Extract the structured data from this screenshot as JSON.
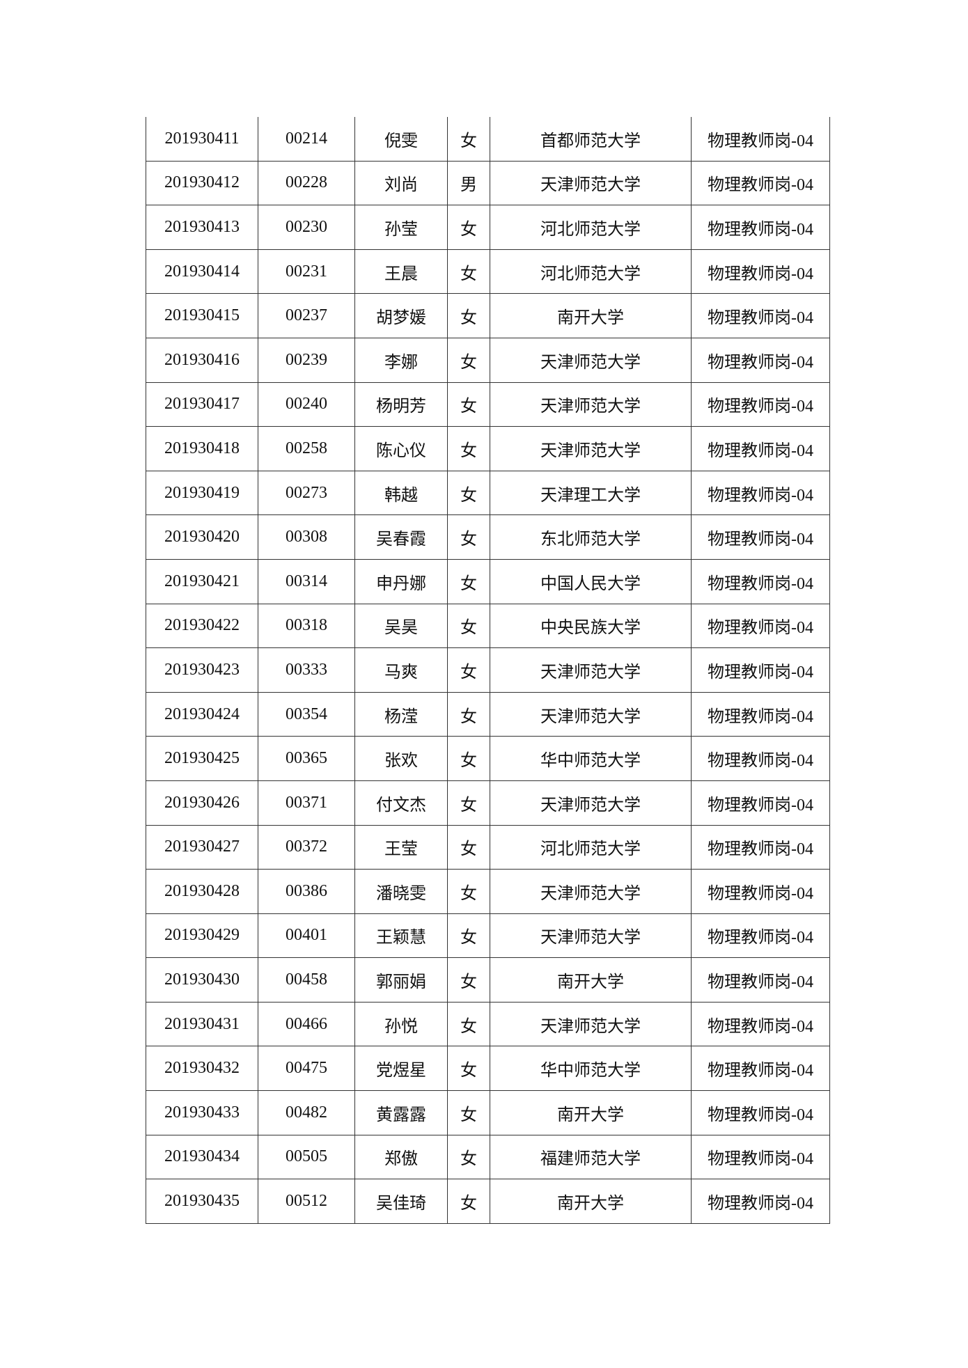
{
  "table": {
    "rows": [
      [
        "201930411",
        "00214",
        "倪雯",
        "女",
        "首都师范大学",
        "物理教师岗-04"
      ],
      [
        "201930412",
        "00228",
        "刘尚",
        "男",
        "天津师范大学",
        "物理教师岗-04"
      ],
      [
        "201930413",
        "00230",
        "孙莹",
        "女",
        "河北师范大学",
        "物理教师岗-04"
      ],
      [
        "201930414",
        "00231",
        "王晨",
        "女",
        "河北师范大学",
        "物理教师岗-04"
      ],
      [
        "201930415",
        "00237",
        "胡梦媛",
        "女",
        "南开大学",
        "物理教师岗-04"
      ],
      [
        "201930416",
        "00239",
        "李娜",
        "女",
        "天津师范大学",
        "物理教师岗-04"
      ],
      [
        "201930417",
        "00240",
        "杨明芳",
        "女",
        "天津师范大学",
        "物理教师岗-04"
      ],
      [
        "201930418",
        "00258",
        "陈心仪",
        "女",
        "天津师范大学",
        "物理教师岗-04"
      ],
      [
        "201930419",
        "00273",
        "韩越",
        "女",
        "天津理工大学",
        "物理教师岗-04"
      ],
      [
        "201930420",
        "00308",
        "吴春霞",
        "女",
        "东北师范大学",
        "物理教师岗-04"
      ],
      [
        "201930421",
        "00314",
        "申丹娜",
        "女",
        "中国人民大学",
        "物理教师岗-04"
      ],
      [
        "201930422",
        "00318",
        "吴昊",
        "女",
        "中央民族大学",
        "物理教师岗-04"
      ],
      [
        "201930423",
        "00333",
        "马爽",
        "女",
        "天津师范大学",
        "物理教师岗-04"
      ],
      [
        "201930424",
        "00354",
        "杨滢",
        "女",
        "天津师范大学",
        "物理教师岗-04"
      ],
      [
        "201930425",
        "00365",
        "张欢",
        "女",
        "华中师范大学",
        "物理教师岗-04"
      ],
      [
        "201930426",
        "00371",
        "付文杰",
        "女",
        "天津师范大学",
        "物理教师岗-04"
      ],
      [
        "201930427",
        "00372",
        "王莹",
        "女",
        "河北师范大学",
        "物理教师岗-04"
      ],
      [
        "201930428",
        "00386",
        "潘晓雯",
        "女",
        "天津师范大学",
        "物理教师岗-04"
      ],
      [
        "201930429",
        "00401",
        "王颖慧",
        "女",
        "天津师范大学",
        "物理教师岗-04"
      ],
      [
        "201930430",
        "00458",
        "郭丽娟",
        "女",
        "南开大学",
        "物理教师岗-04"
      ],
      [
        "201930431",
        "00466",
        "孙悦",
        "女",
        "天津师范大学",
        "物理教师岗-04"
      ],
      [
        "201930432",
        "00475",
        "党煜星",
        "女",
        "华中师范大学",
        "物理教师岗-04"
      ],
      [
        "201930433",
        "00482",
        "黄露露",
        "女",
        "南开大学",
        "物理教师岗-04"
      ],
      [
        "201930434",
        "00505",
        "郑傲",
        "女",
        "福建师范大学",
        "物理教师岗-04"
      ],
      [
        "201930435",
        "00512",
        "吴佳琦",
        "女",
        "南开大学",
        "物理教师岗-04"
      ]
    ]
  }
}
